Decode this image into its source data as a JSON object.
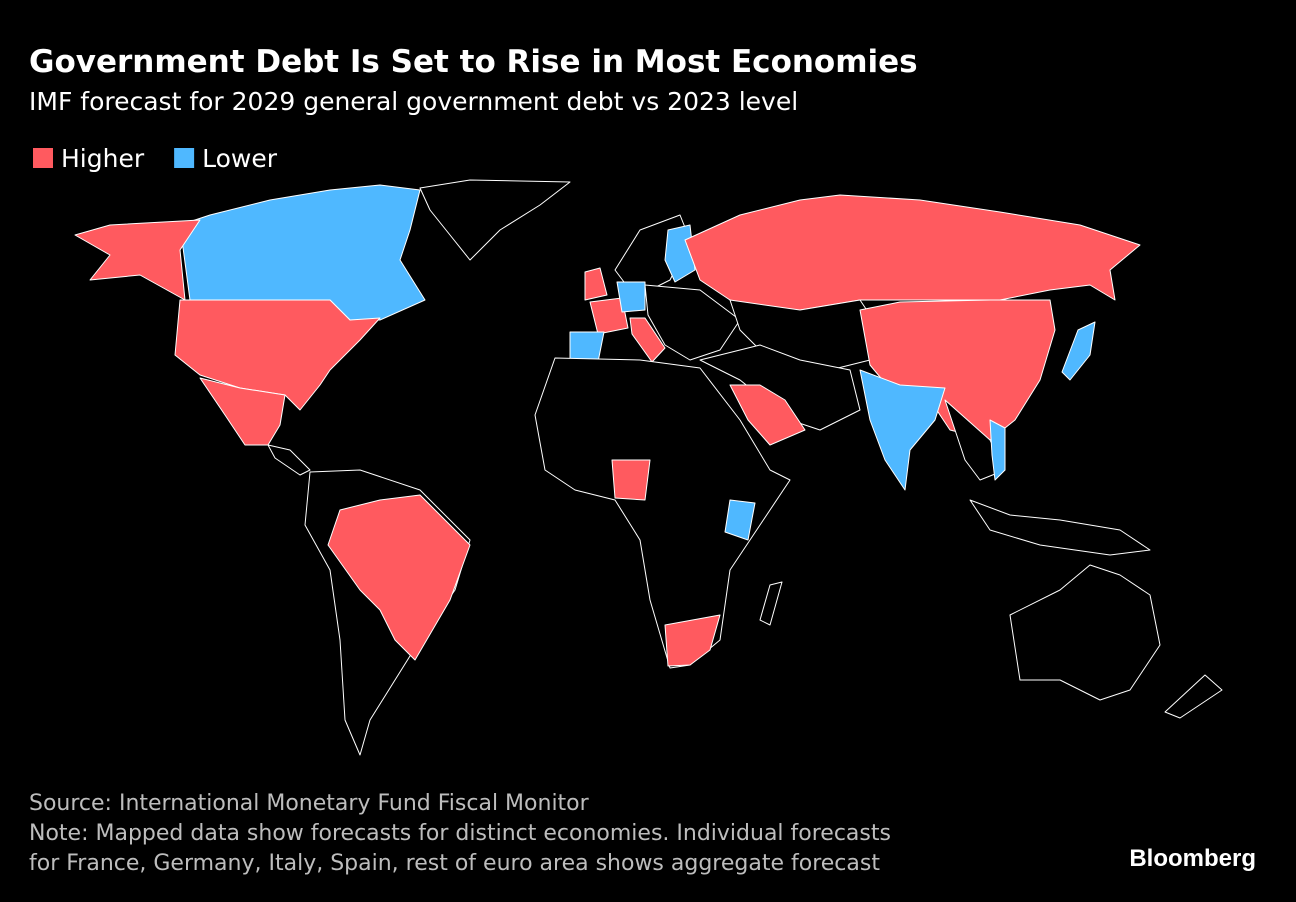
{
  "title": "Government Debt Is Set to Rise in Most Economies",
  "subtitle": "IMF forecast for 2029 general government debt vs 2023 level",
  "legend": [
    {
      "label": "Higher",
      "color": "#ff5a5f"
    },
    {
      "label": "Lower",
      "color": "#4fb8ff"
    }
  ],
  "source": "Source: International Monetary Fund Fiscal Monitor",
  "note": [
    "Note: Mapped data show forecasts for distinct economies. Individual forecasts",
    "for France, Germany, Italy, Spain, rest of euro area shows aggregate forecast"
  ],
  "brand": "Bloomberg"
}
